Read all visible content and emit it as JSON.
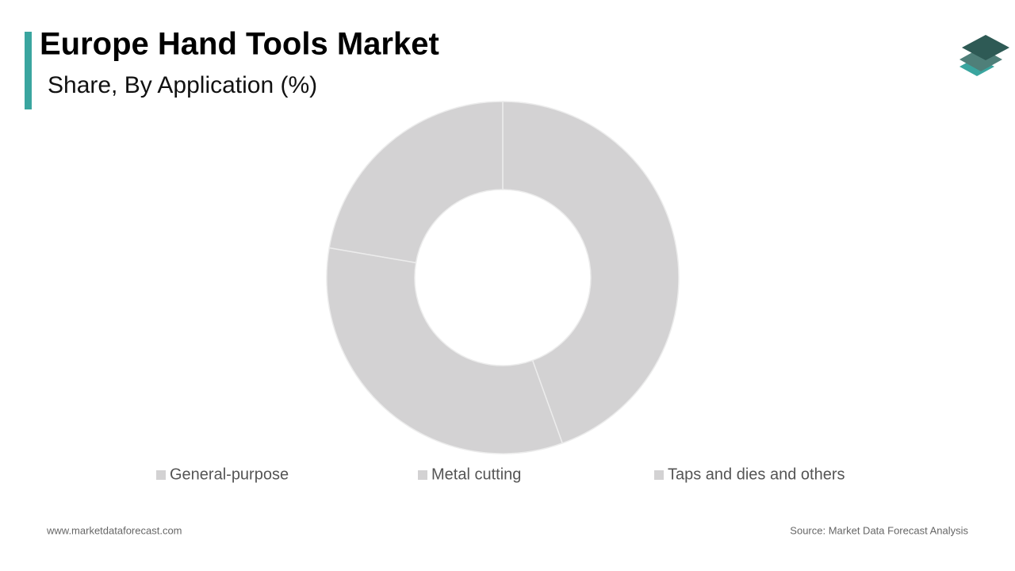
{
  "chart_data": {
    "type": "donut",
    "title": "Europe Hand Tools Market",
    "subtitle": "Share, By Application (%)",
    "categories": [
      "General-purpose",
      "Metal cutting",
      "Taps and dies and others"
    ],
    "values": [
      44.5,
      33.2,
      22.3
    ],
    "colors": [
      "#d3d2d3",
      "#d3d2d3",
      "#d3d2d3"
    ]
  },
  "footer": {
    "website": "www.marketdataforecast.com",
    "source": "Source: Market Data Forecast Analysis"
  }
}
